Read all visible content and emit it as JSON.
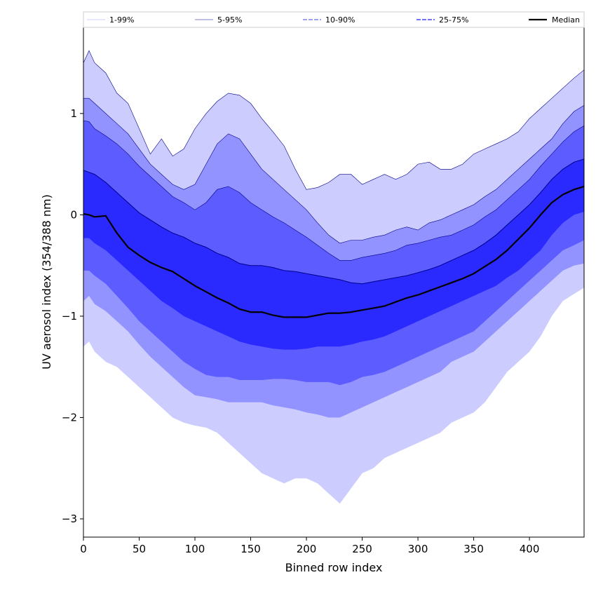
{
  "chart_data": {
    "type": "area",
    "xlabel": "Binned row index",
    "ylabel": "UV aerosol index (354/388 nm)",
    "xlim": [
      0,
      449
    ],
    "ylim": [
      -3.18,
      1.85
    ],
    "xticks": [
      0,
      50,
      100,
      150,
      200,
      250,
      300,
      350,
      400
    ],
    "yticks": [
      -3,
      -2,
      -1,
      0,
      1
    ],
    "legend": {
      "placement": "top",
      "entries": [
        "1-99%",
        "5-95%",
        "10-90%",
        "25-75%",
        "Median"
      ]
    },
    "x": [
      0,
      5,
      10,
      20,
      30,
      40,
      50,
      60,
      70,
      80,
      90,
      100,
      110,
      120,
      130,
      140,
      150,
      160,
      170,
      180,
      190,
      200,
      210,
      220,
      230,
      240,
      250,
      260,
      270,
      280,
      290,
      300,
      310,
      320,
      330,
      340,
      350,
      360,
      370,
      380,
      390,
      400,
      410,
      420,
      430,
      440,
      449
    ],
    "series": [
      {
        "name": "p99",
        "values": [
          1.5,
          1.62,
          1.5,
          1.4,
          1.2,
          1.1,
          0.85,
          0.6,
          0.75,
          0.58,
          0.65,
          0.85,
          1.0,
          1.12,
          1.2,
          1.18,
          1.1,
          0.95,
          0.82,
          0.68,
          0.45,
          0.25,
          0.27,
          0.32,
          0.4,
          0.4,
          0.3,
          0.35,
          0.4,
          0.35,
          0.4,
          0.5,
          0.52,
          0.45,
          0.45,
          0.5,
          0.6,
          0.65,
          0.7,
          0.75,
          0.82,
          0.95,
          1.05,
          1.15,
          1.25,
          1.35,
          1.43
        ]
      },
      {
        "name": "p95",
        "values": [
          1.15,
          1.15,
          1.1,
          1.0,
          0.9,
          0.8,
          0.65,
          0.5,
          0.4,
          0.3,
          0.25,
          0.3,
          0.5,
          0.7,
          0.8,
          0.75,
          0.6,
          0.45,
          0.35,
          0.25,
          0.15,
          0.05,
          -0.08,
          -0.2,
          -0.28,
          -0.25,
          -0.25,
          -0.22,
          -0.2,
          -0.15,
          -0.12,
          -0.15,
          -0.08,
          -0.05,
          0.0,
          0.05,
          0.1,
          0.18,
          0.25,
          0.35,
          0.45,
          0.55,
          0.65,
          0.75,
          0.9,
          1.02,
          1.08
        ]
      },
      {
        "name": "p90",
        "values": [
          0.93,
          0.92,
          0.85,
          0.78,
          0.7,
          0.6,
          0.48,
          0.38,
          0.28,
          0.18,
          0.12,
          0.05,
          0.12,
          0.25,
          0.28,
          0.22,
          0.12,
          0.05,
          -0.02,
          -0.08,
          -0.15,
          -0.22,
          -0.3,
          -0.38,
          -0.45,
          -0.45,
          -0.42,
          -0.4,
          -0.38,
          -0.35,
          -0.3,
          -0.28,
          -0.25,
          -0.22,
          -0.2,
          -0.15,
          -0.1,
          -0.02,
          0.05,
          0.15,
          0.25,
          0.35,
          0.48,
          0.6,
          0.72,
          0.82,
          0.88
        ]
      },
      {
        "name": "p75",
        "values": [
          0.44,
          0.42,
          0.4,
          0.32,
          0.22,
          0.12,
          0.02,
          -0.05,
          -0.12,
          -0.18,
          -0.22,
          -0.28,
          -0.32,
          -0.38,
          -0.42,
          -0.48,
          -0.5,
          -0.5,
          -0.52,
          -0.55,
          -0.56,
          -0.58,
          -0.6,
          -0.62,
          -0.64,
          -0.67,
          -0.68,
          -0.66,
          -0.64,
          -0.62,
          -0.6,
          -0.57,
          -0.54,
          -0.5,
          -0.45,
          -0.4,
          -0.35,
          -0.28,
          -0.2,
          -0.1,
          0.0,
          0.1,
          0.22,
          0.35,
          0.45,
          0.52,
          0.55
        ]
      },
      {
        "name": "Median",
        "values": [
          0.01,
          0.0,
          -0.02,
          -0.01,
          -0.18,
          -0.32,
          -0.4,
          -0.47,
          -0.52,
          -0.56,
          -0.63,
          -0.7,
          -0.76,
          -0.82,
          -0.87,
          -0.93,
          -0.96,
          -0.96,
          -0.99,
          -1.01,
          -1.01,
          -1.01,
          -0.99,
          -0.97,
          -0.97,
          -0.96,
          -0.94,
          -0.92,
          -0.9,
          -0.86,
          -0.82,
          -0.79,
          -0.75,
          -0.71,
          -0.67,
          -0.63,
          -0.58,
          -0.51,
          -0.44,
          -0.35,
          -0.24,
          -0.13,
          0.0,
          0.12,
          0.2,
          0.25,
          0.28
        ]
      },
      {
        "name": "p25",
        "values": [
          -0.23,
          -0.23,
          -0.28,
          -0.35,
          -0.45,
          -0.55,
          -0.65,
          -0.75,
          -0.85,
          -0.92,
          -1.0,
          -1.05,
          -1.1,
          -1.15,
          -1.2,
          -1.25,
          -1.28,
          -1.3,
          -1.32,
          -1.33,
          -1.33,
          -1.32,
          -1.3,
          -1.3,
          -1.3,
          -1.28,
          -1.25,
          -1.23,
          -1.2,
          -1.15,
          -1.1,
          -1.05,
          -1.0,
          -0.95,
          -0.9,
          -0.85,
          -0.8,
          -0.75,
          -0.7,
          -0.62,
          -0.55,
          -0.45,
          -0.35,
          -0.2,
          -0.08,
          0.0,
          0.03
        ]
      },
      {
        "name": "p10",
        "values": [
          -0.55,
          -0.55,
          -0.6,
          -0.68,
          -0.8,
          -0.92,
          -1.05,
          -1.15,
          -1.25,
          -1.35,
          -1.45,
          -1.52,
          -1.58,
          -1.6,
          -1.6,
          -1.63,
          -1.63,
          -1.63,
          -1.62,
          -1.62,
          -1.63,
          -1.65,
          -1.65,
          -1.65,
          -1.68,
          -1.65,
          -1.6,
          -1.58,
          -1.55,
          -1.5,
          -1.45,
          -1.4,
          -1.35,
          -1.3,
          -1.25,
          -1.2,
          -1.15,
          -1.05,
          -0.95,
          -0.85,
          -0.75,
          -0.65,
          -0.55,
          -0.45,
          -0.35,
          -0.3,
          -0.25
        ]
      },
      {
        "name": "p5",
        "values": [
          -0.85,
          -0.8,
          -0.88,
          -0.95,
          -1.05,
          -1.15,
          -1.28,
          -1.4,
          -1.5,
          -1.6,
          -1.7,
          -1.78,
          -1.8,
          -1.82,
          -1.85,
          -1.85,
          -1.85,
          -1.85,
          -1.88,
          -1.9,
          -1.92,
          -1.95,
          -1.97,
          -2.0,
          -2.0,
          -1.95,
          -1.9,
          -1.85,
          -1.8,
          -1.75,
          -1.7,
          -1.65,
          -1.6,
          -1.55,
          -1.45,
          -1.4,
          -1.35,
          -1.25,
          -1.15,
          -1.05,
          -0.95,
          -0.85,
          -0.75,
          -0.65,
          -0.55,
          -0.5,
          -0.48
        ]
      },
      {
        "name": "p1",
        "values": [
          -1.3,
          -1.25,
          -1.35,
          -1.45,
          -1.5,
          -1.6,
          -1.7,
          -1.8,
          -1.9,
          -2.0,
          -2.05,
          -2.08,
          -2.1,
          -2.15,
          -2.25,
          -2.35,
          -2.45,
          -2.55,
          -2.6,
          -2.65,
          -2.6,
          -2.6,
          -2.65,
          -2.75,
          -2.85,
          -2.7,
          -2.55,
          -2.5,
          -2.4,
          -2.35,
          -2.3,
          -2.25,
          -2.2,
          -2.15,
          -2.05,
          -2.0,
          -1.95,
          -1.85,
          -1.7,
          -1.55,
          -1.45,
          -1.35,
          -1.2,
          -1.0,
          -0.85,
          -0.78,
          -0.72
        ]
      }
    ],
    "bands": [
      {
        "name": "1-99%",
        "upper": "p99",
        "lower": "p1",
        "color": "#ccccff"
      },
      {
        "name": "5-95%",
        "upper": "p95",
        "lower": "p5",
        "color": "#9393ff"
      },
      {
        "name": "10-90%",
        "upper": "p90",
        "lower": "p10",
        "color": "#5c5cff"
      },
      {
        "name": "25-75%",
        "upper": "p75",
        "lower": "p25",
        "color": "#2a2aff"
      }
    ],
    "colors": {
      "band_edge": "#00008b",
      "median": "#000000",
      "legend_1_99": "#ccccff",
      "legend_5_95": "#8080c8",
      "legend_10_90": "#6a6ae8",
      "legend_25_75": "#4444ee"
    }
  }
}
